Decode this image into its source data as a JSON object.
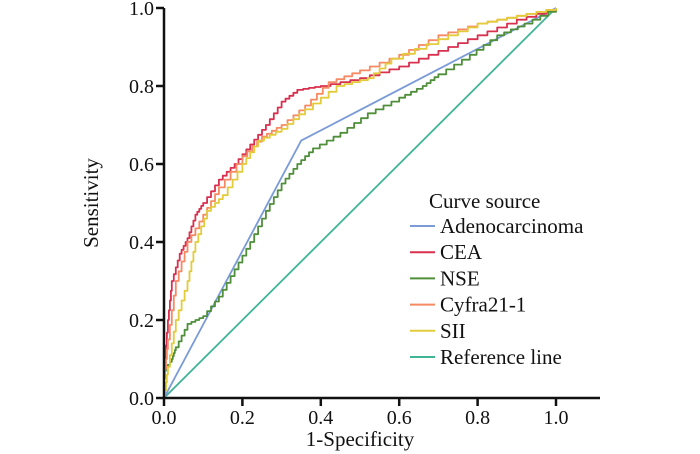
{
  "chart_data": {
    "type": "line",
    "title": "",
    "xlabel": "1-Specificity",
    "ylabel": "Sensitivity",
    "xlim": [
      0,
      1
    ],
    "ylim": [
      0,
      1
    ],
    "xticks": [
      "0.0",
      "0.2",
      "0.4",
      "0.6",
      "0.8",
      "1.0"
    ],
    "yticks": [
      "0.0",
      "0.2",
      "0.4",
      "0.6",
      "0.8",
      "1.0"
    ],
    "grid": false,
    "legend": {
      "title": "Curve source",
      "placement": "bottom-right"
    },
    "series": [
      {
        "name": "Adenocarcinoma",
        "color": "#7b9bd8",
        "step": false,
        "x": [
          0,
          0.35,
          1
        ],
        "y": [
          0,
          0.66,
          1
        ]
      },
      {
        "name": "CEA",
        "color": "#d9304f",
        "step": true,
        "x": [
          0,
          0.01,
          0.02,
          0.04,
          0.06,
          0.08,
          0.1,
          0.14,
          0.18,
          0.22,
          0.26,
          0.3,
          0.34,
          0.4,
          0.5,
          0.6,
          0.7,
          0.8,
          0.9,
          1
        ],
        "y": [
          0.07,
          0.2,
          0.3,
          0.37,
          0.41,
          0.47,
          0.5,
          0.56,
          0.6,
          0.65,
          0.7,
          0.76,
          0.79,
          0.8,
          0.82,
          0.85,
          0.89,
          0.93,
          0.97,
          1
        ]
      },
      {
        "name": "NSE",
        "color": "#4f8f3a",
        "step": true,
        "x": [
          0,
          0.02,
          0.03,
          0.06,
          0.1,
          0.14,
          0.18,
          0.22,
          0.26,
          0.3,
          0.34,
          0.38,
          0.45,
          0.52,
          0.6,
          0.66,
          0.7,
          0.78,
          0.85,
          0.92,
          1
        ],
        "y": [
          0.07,
          0.1,
          0.13,
          0.19,
          0.21,
          0.26,
          0.33,
          0.4,
          0.48,
          0.55,
          0.6,
          0.64,
          0.68,
          0.73,
          0.77,
          0.8,
          0.83,
          0.88,
          0.93,
          0.96,
          1
        ]
      },
      {
        "name": "Cyfra21-1",
        "color": "#f58a63",
        "step": true,
        "x": [
          0,
          0.01,
          0.03,
          0.06,
          0.1,
          0.14,
          0.2,
          0.25,
          0.3,
          0.36,
          0.42,
          0.5,
          0.6,
          0.7,
          0.8,
          0.9,
          1
        ],
        "y": [
          0.05,
          0.15,
          0.3,
          0.4,
          0.47,
          0.54,
          0.62,
          0.67,
          0.7,
          0.75,
          0.81,
          0.84,
          0.88,
          0.93,
          0.96,
          0.98,
          1
        ]
      },
      {
        "name": "SII",
        "color": "#e3cc3a",
        "step": true,
        "x": [
          0,
          0.01,
          0.03,
          0.06,
          0.08,
          0.11,
          0.15,
          0.2,
          0.24,
          0.3,
          0.36,
          0.44,
          0.52,
          0.58,
          0.7,
          0.8,
          0.9,
          1
        ],
        "y": [
          0,
          0.08,
          0.2,
          0.3,
          0.4,
          0.48,
          0.52,
          0.6,
          0.66,
          0.69,
          0.74,
          0.8,
          0.82,
          0.87,
          0.92,
          0.96,
          0.98,
          1
        ]
      },
      {
        "name": "Reference line",
        "color": "#3fb596",
        "step": false,
        "x": [
          0,
          1
        ],
        "y": [
          0,
          1
        ]
      }
    ]
  }
}
